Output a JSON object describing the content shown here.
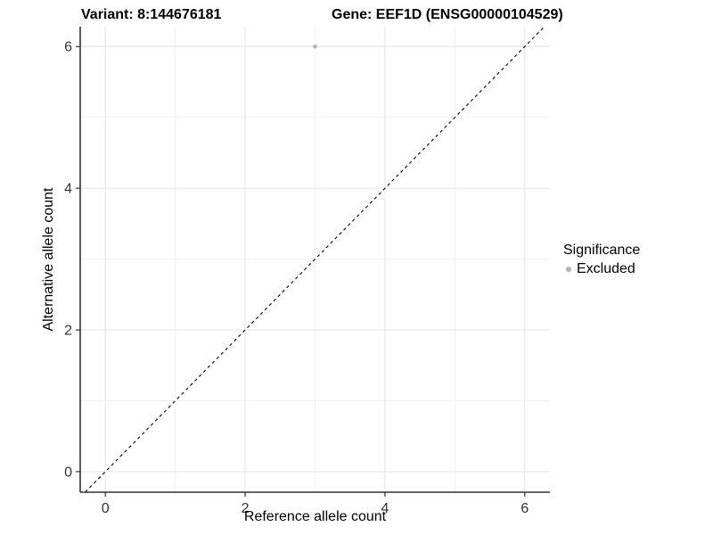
{
  "chart_data": {
    "type": "scatter",
    "title_left": "Variant: 8:144676181",
    "title_right": "Gene: EEF1D (ENSG00000104529)",
    "xlabel": "Reference allele count",
    "ylabel": "Alternative allele count",
    "xlim": [
      -0.36,
      6.36
    ],
    "ylim": [
      -0.29,
      6.28
    ],
    "xticks": [
      0,
      2,
      4,
      6
    ],
    "yticks": [
      0,
      2,
      4,
      6
    ],
    "minor_xticks": [
      1,
      3,
      5
    ],
    "minor_yticks": [
      1,
      3,
      5
    ],
    "grid": true,
    "points": [
      {
        "x": 3,
        "y": 6,
        "series": "Excluded"
      }
    ],
    "identity_line": {
      "slope": 1,
      "intercept": 0,
      "style": "dashed"
    },
    "legend": {
      "title": "Significance",
      "position": "right",
      "items": [
        {
          "label": "Excluded",
          "color": "#b3b3b3"
        }
      ]
    },
    "colors": {
      "point": "#b3b3b3",
      "grid_major": "#e8e8e8",
      "grid_minor": "#f2f2f2",
      "axis": "#333333",
      "identity_line": "#000000",
      "tick_label": "#333333"
    }
  }
}
